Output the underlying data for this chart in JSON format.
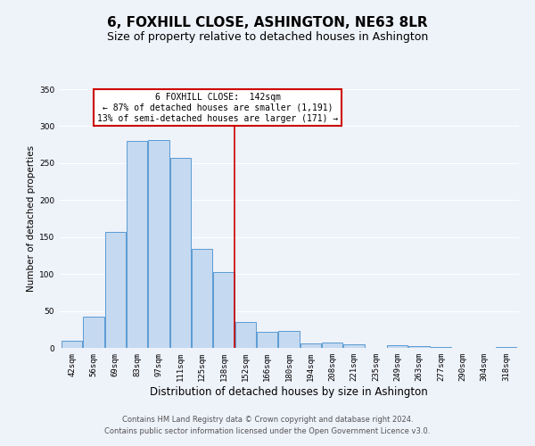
{
  "title": "6, FOXHILL CLOSE, ASHINGTON, NE63 8LR",
  "subtitle": "Size of property relative to detached houses in Ashington",
  "xlabel": "Distribution of detached houses by size in Ashington",
  "ylabel": "Number of detached properties",
  "bar_labels": [
    "42sqm",
    "56sqm",
    "69sqm",
    "83sqm",
    "97sqm",
    "111sqm",
    "125sqm",
    "138sqm",
    "152sqm",
    "166sqm",
    "180sqm",
    "194sqm",
    "208sqm",
    "221sqm",
    "235sqm",
    "249sqm",
    "263sqm",
    "277sqm",
    "290sqm",
    "304sqm",
    "318sqm"
  ],
  "bar_values": [
    10,
    42,
    157,
    280,
    281,
    257,
    134,
    103,
    35,
    22,
    23,
    6,
    7,
    5,
    0,
    4,
    2,
    1,
    0,
    0,
    1
  ],
  "bar_color": "#c5d9f0",
  "bar_edge_color": "#5b9bd5",
  "property_line_x": 7.5,
  "property_line_label": "6 FOXHILL CLOSE:  142sqm",
  "annotation_line1": "← 87% of detached houses are smaller (1,191)",
  "annotation_line2": "13% of semi-detached houses are larger (171) →",
  "annotation_box_color": "#ffffff",
  "annotation_box_edge_color": "#cc0000",
  "vline_color": "#cc0000",
  "footer_line1": "Contains HM Land Registry data © Crown copyright and database right 2024.",
  "footer_line2": "Contains public sector information licensed under the Open Government Licence v3.0.",
  "ylim": [
    0,
    350
  ],
  "background_color": "#eef2f9",
  "grid_color": "#ffffff",
  "title_fontsize": 11,
  "subtitle_fontsize": 9,
  "xlabel_fontsize": 8.5,
  "ylabel_fontsize": 7.5,
  "tick_fontsize": 6.5,
  "footer_fontsize": 6,
  "annot_fontsize": 7
}
